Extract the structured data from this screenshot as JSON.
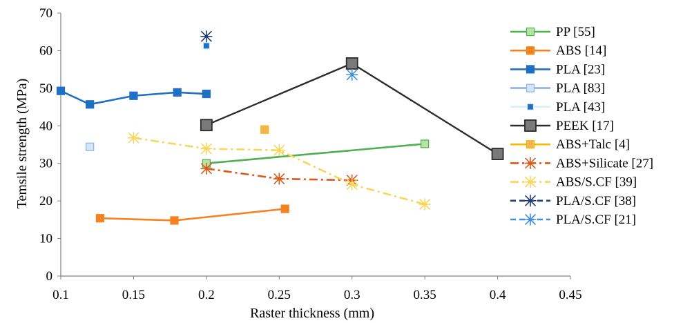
{
  "chart_data": {
    "type": "line",
    "xlabel": "Raster thickness (mm)",
    "ylabel": "Temsile strength (MPa)",
    "xlim": [
      0.1,
      0.45
    ],
    "ylim": [
      0,
      70
    ],
    "xticks": [
      "0.1",
      "0.15",
      "0.2",
      "0.25",
      "0.3",
      "0.35",
      "0.4",
      "0.45"
    ],
    "yticks": [
      "0",
      "10",
      "20",
      "30",
      "40",
      "50",
      "60",
      "70"
    ],
    "grid": false,
    "legend_position": "right",
    "series": [
      {
        "name": "PP [55]",
        "color": "#4caf50",
        "fill": "#b9e3a4",
        "marker": "square",
        "line": "solid",
        "x": [
          0.2,
          0.35
        ],
        "y": [
          30,
          35.2
        ]
      },
      {
        "name": "ABS [14]",
        "color": "#f58220",
        "fill": "#f58220",
        "marker": "square",
        "line": "solid",
        "x": [
          0.127,
          0.178,
          0.254
        ],
        "y": [
          15.4,
          14.8,
          17.9
        ]
      },
      {
        "name": "PLA [23]",
        "color": "#1f6fc5",
        "fill": "#1f6fc5",
        "marker": "square",
        "line": "solid",
        "x": [
          0.1,
          0.12,
          0.15,
          0.18,
          0.2
        ],
        "y": [
          49.3,
          45.7,
          48,
          48.9,
          48.5
        ]
      },
      {
        "name": "PLA [83]",
        "color": "#8fb3e3",
        "fill": "#d6e4f7",
        "marker": "square",
        "line": "solid",
        "x": [
          0.12
        ],
        "y": [
          34.4
        ]
      },
      {
        "name": "PLA [43]",
        "color": "#d9eef5",
        "fill": "#1f6fc5",
        "marker": "square-small",
        "line": "solid",
        "x": [
          0.2
        ],
        "y": [
          61.3
        ]
      },
      {
        "name": "PEEK [17]",
        "color": "#2b2b2b",
        "fill": "#7a7a7a",
        "marker": "square-large",
        "line": "solid",
        "x": [
          0.2,
          0.3,
          0.4
        ],
        "y": [
          40.2,
          56.6,
          32.5
        ]
      },
      {
        "name": "ABS+Talc [4]",
        "color": "#f5b800",
        "fill": "#f5b351",
        "marker": "square",
        "line": "solid",
        "x": [
          0.24
        ],
        "y": [
          39
        ]
      },
      {
        "name": "ABS+Silicate [27]",
        "color": "#d95a1a",
        "fill": "none",
        "marker": "star",
        "line": "dashdot",
        "x": [
          0.2,
          0.25,
          0.3
        ],
        "y": [
          28.6,
          25.9,
          25.5
        ]
      },
      {
        "name": "ABS/S.CF [39]",
        "color": "#f9d55b",
        "fill": "none",
        "marker": "star",
        "line": "dashdot",
        "x": [
          0.15,
          0.2,
          0.25,
          0.3,
          0.35
        ],
        "y": [
          36.8,
          33.9,
          33.5,
          24.4,
          19.1
        ]
      },
      {
        "name": "PLA/S.CF [38]",
        "color": "#1f3b73",
        "fill": "none",
        "marker": "star",
        "line": "dashed",
        "x": [
          0.2
        ],
        "y": [
          63.8
        ]
      },
      {
        "name": "PLA/S.CF [21]",
        "color": "#3f8fdc",
        "fill": "none",
        "marker": "star",
        "line": "dashed",
        "x": [
          0.3
        ],
        "y": [
          53.6
        ]
      }
    ]
  }
}
